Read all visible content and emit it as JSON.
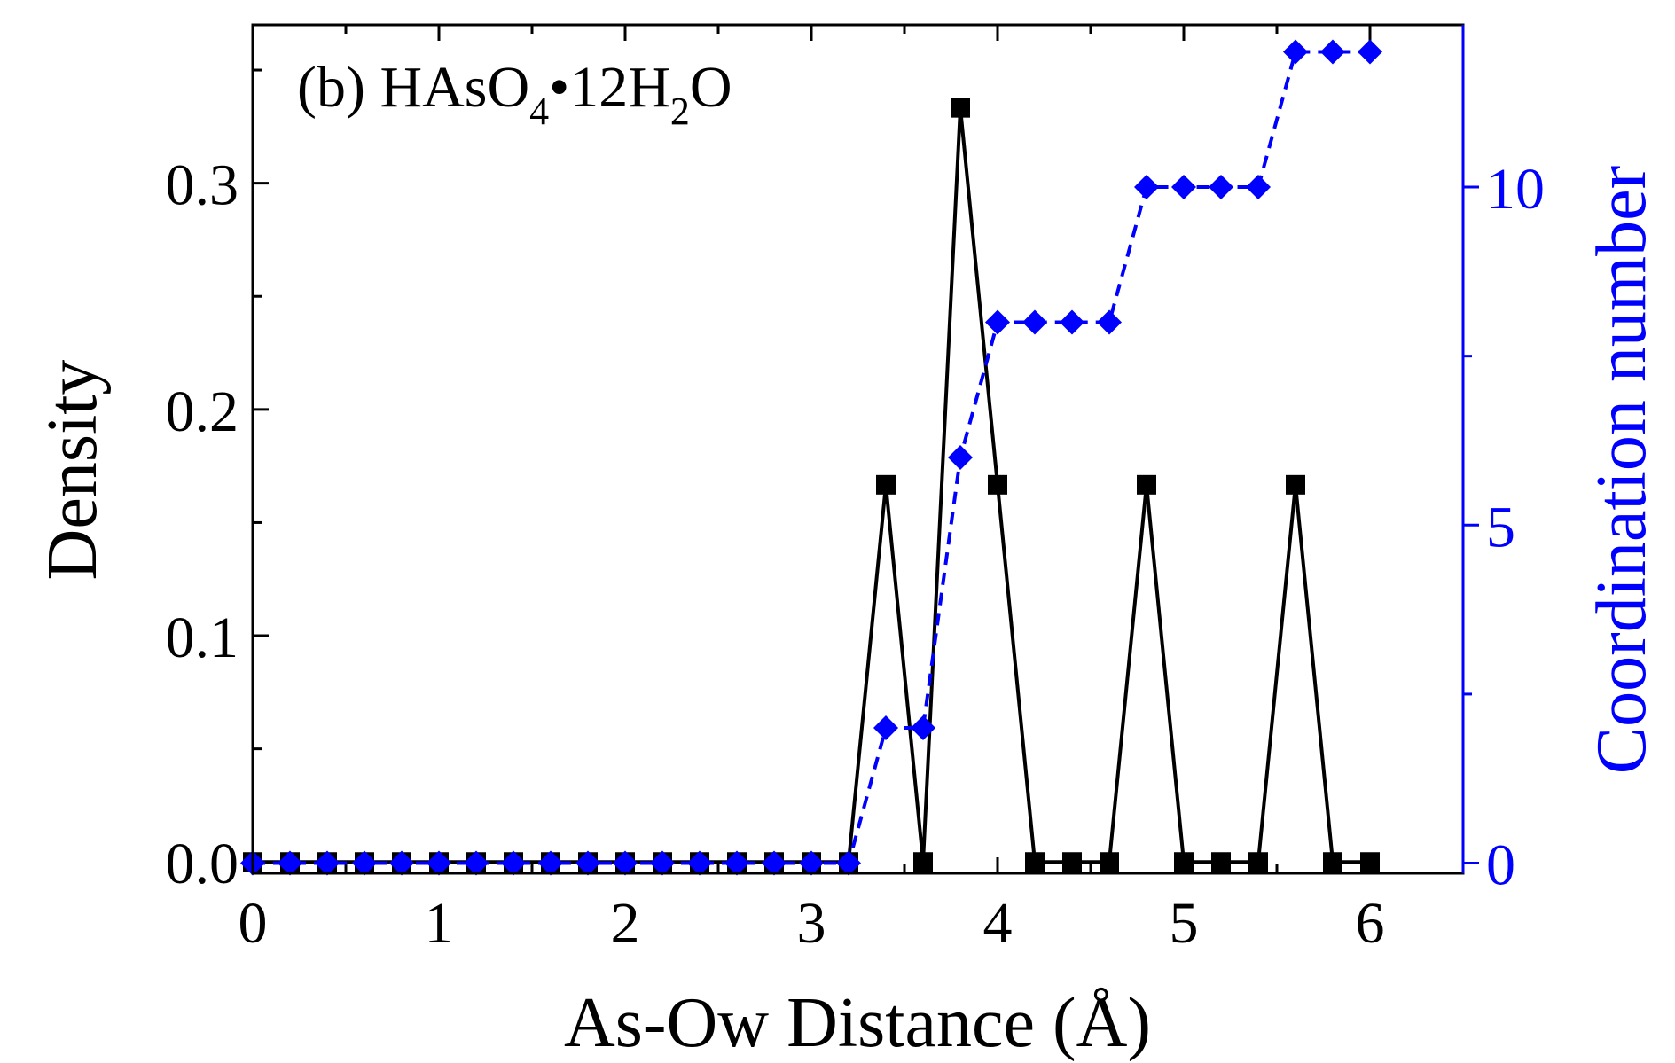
{
  "chart_data": {
    "type": "line",
    "panel_label": "(b) HAsO",
    "title": {
      "prefix": "(b) HAsO",
      "sub1": "4",
      "middle": "12H",
      "sub2": "2",
      "suffix": "O",
      "bullet": "•"
    },
    "xlabel": "As-Ow Distance (Å)",
    "ylabel_left": "Density",
    "ylabel_right": "Coordination number",
    "xlim": [
      0,
      6.5
    ],
    "ylim_left": [
      -0.005,
      0.37
    ],
    "ylim_right": [
      -0.15,
      12.4
    ],
    "x_ticks": [
      0,
      1,
      2,
      3,
      4,
      5,
      6
    ],
    "x_tick_labels": [
      "0",
      "1",
      "2",
      "3",
      "4",
      "5",
      "6"
    ],
    "y_left_ticks": [
      0.0,
      0.1,
      0.2,
      0.3
    ],
    "y_left_tick_labels": [
      "0.0",
      "0.1",
      "0.2",
      "0.3"
    ],
    "y_right_ticks": [
      0,
      5,
      10
    ],
    "y_right_tick_labels": [
      "0",
      "5",
      "10"
    ],
    "colors": {
      "density": "#000000",
      "coordination": "#0000ff",
      "axis": "#000000",
      "right_axis": "#0000ff"
    },
    "series": [
      {
        "name": "Density",
        "axis": "left",
        "marker": "square",
        "line": "solid",
        "x": [
          0,
          0.2,
          0.4,
          0.6,
          0.8,
          1.0,
          1.2,
          1.4,
          1.6,
          1.8,
          2.0,
          2.2,
          2.4,
          2.6,
          2.8,
          3.0,
          3.2,
          3.4,
          3.6,
          3.8,
          4.0,
          4.2,
          4.4,
          4.6,
          4.8,
          5.0,
          5.2,
          5.4,
          5.6,
          5.8,
          6.0
        ],
        "values": [
          0,
          0,
          0,
          0,
          0,
          0,
          0,
          0,
          0,
          0,
          0,
          0,
          0,
          0,
          0,
          0,
          0,
          0.1667,
          0,
          0.3333,
          0.1667,
          0,
          0,
          0,
          0.1667,
          0,
          0,
          0,
          0.1667,
          0,
          0
        ]
      },
      {
        "name": "Coordination number",
        "axis": "right",
        "marker": "diamond",
        "line": "dashed",
        "x": [
          0,
          0.2,
          0.4,
          0.6,
          0.8,
          1.0,
          1.2,
          1.4,
          1.6,
          1.8,
          2.0,
          2.2,
          2.4,
          2.6,
          2.8,
          3.0,
          3.2,
          3.4,
          3.6,
          3.8,
          4.0,
          4.2,
          4.4,
          4.6,
          4.8,
          5.0,
          5.2,
          5.4,
          5.6,
          5.8,
          6.0
        ],
        "values": [
          0,
          0,
          0,
          0,
          0,
          0,
          0,
          0,
          0,
          0,
          0,
          0,
          0,
          0,
          0,
          0,
          0,
          2,
          2,
          6,
          8,
          8,
          8,
          8,
          10,
          10,
          10,
          10,
          12,
          12,
          12
        ]
      }
    ]
  }
}
